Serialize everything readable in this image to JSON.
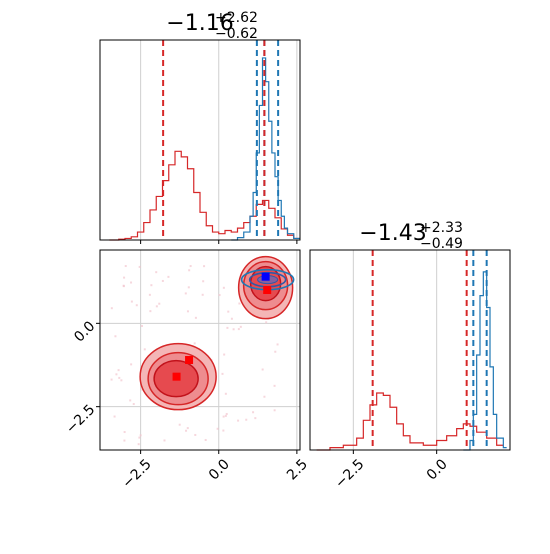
{
  "chart_data": {
    "type": "corner",
    "colors": {
      "red": "#d62728",
      "blue": "#1f77b4",
      "contour_fill": "#e8676b",
      "contour_light": "#f4b6b6",
      "contour_dark": "#c2121b",
      "grid": "#cfcfcf"
    },
    "titles": [
      {
        "main": "−1.16",
        "sup": "+2.62",
        "sub": "−0.62"
      },
      {
        "main": "−1.43",
        "sup": "+2.33",
        "sub": "−0.49"
      }
    ],
    "x_axis": {
      "range": [
        -3.8,
        2.6
      ],
      "ticks": [
        -2.5,
        0.0,
        2.5
      ],
      "tick_labels": [
        "−2.5",
        "0.0",
        "2.5"
      ]
    },
    "y2_axis": {
      "range": [
        -3.8,
        2.2
      ],
      "ticks": [
        0.0,
        -2.5
      ],
      "tick_labels": [
        "0.0",
        "−2.5"
      ]
    },
    "x2_axis": {
      "range": [
        -3.8,
        2.2
      ],
      "ticks": [
        -2.5,
        0.0
      ],
      "tick_labels": [
        "−2.5",
        "0.0"
      ]
    },
    "hist1": {
      "quantiles_red": [
        -1.78,
        1.46
      ],
      "quantiles_blue": [
        1.22,
        1.46,
        1.9
      ],
      "red_counts": [
        [
          -3.5,
          0
        ],
        [
          -3.2,
          1
        ],
        [
          -3.0,
          2
        ],
        [
          -2.8,
          4
        ],
        [
          -2.6,
          10
        ],
        [
          -2.4,
          22
        ],
        [
          -2.2,
          38
        ],
        [
          -2.0,
          55
        ],
        [
          -1.8,
          75
        ],
        [
          -1.6,
          95
        ],
        [
          -1.4,
          112
        ],
        [
          -1.2,
          105
        ],
        [
          -1.0,
          90
        ],
        [
          -0.8,
          60
        ],
        [
          -0.6,
          35
        ],
        [
          -0.4,
          18
        ],
        [
          -0.2,
          10
        ],
        [
          0.0,
          8
        ],
        [
          0.2,
          12
        ],
        [
          0.4,
          10
        ],
        [
          0.6,
          15
        ],
        [
          0.8,
          22
        ],
        [
          1.0,
          30
        ],
        [
          1.2,
          45
        ],
        [
          1.4,
          50
        ],
        [
          1.6,
          40
        ],
        [
          1.8,
          28
        ],
        [
          2.0,
          14
        ],
        [
          2.2,
          6
        ],
        [
          2.4,
          2
        ],
        [
          2.6,
          0
        ]
      ],
      "blue_counts": [
        [
          0.4,
          0
        ],
        [
          0.6,
          3
        ],
        [
          0.8,
          10
        ],
        [
          1.0,
          30
        ],
        [
          1.1,
          60
        ],
        [
          1.2,
          110
        ],
        [
          1.3,
          170
        ],
        [
          1.4,
          230
        ],
        [
          1.5,
          200
        ],
        [
          1.6,
          150
        ],
        [
          1.7,
          110
        ],
        [
          1.8,
          80
        ],
        [
          1.9,
          50
        ],
        [
          2.0,
          30
        ],
        [
          2.1,
          15
        ],
        [
          2.2,
          8
        ],
        [
          2.4,
          2
        ],
        [
          2.6,
          0
        ]
      ]
    },
    "hist2": {
      "quantiles_red": [
        -1.92,
        0.9
      ],
      "quantiles_blue": [
        1.1,
        1.5
      ],
      "red_counts": [
        [
          -3.6,
          0
        ],
        [
          -3.2,
          2
        ],
        [
          -2.8,
          4
        ],
        [
          -2.4,
          10
        ],
        [
          -2.2,
          25
        ],
        [
          -2.0,
          38
        ],
        [
          -1.8,
          48
        ],
        [
          -1.6,
          46
        ],
        [
          -1.4,
          36
        ],
        [
          -1.2,
          22
        ],
        [
          -1.0,
          12
        ],
        [
          -0.8,
          6
        ],
        [
          -0.4,
          4
        ],
        [
          0.0,
          8
        ],
        [
          0.3,
          12
        ],
        [
          0.6,
          18
        ],
        [
          0.8,
          22
        ],
        [
          1.0,
          20
        ],
        [
          1.2,
          15
        ],
        [
          1.5,
          10
        ],
        [
          1.8,
          4
        ],
        [
          2.0,
          1
        ]
      ],
      "blue_counts": [
        [
          0.8,
          0
        ],
        [
          1.0,
          8
        ],
        [
          1.1,
          30
        ],
        [
          1.2,
          80
        ],
        [
          1.3,
          130
        ],
        [
          1.4,
          150
        ],
        [
          1.5,
          120
        ],
        [
          1.6,
          70
        ],
        [
          1.7,
          30
        ],
        [
          1.8,
          10
        ],
        [
          2.0,
          2
        ],
        [
          2.1,
          0
        ]
      ]
    },
    "scatter": {
      "markers_red": [
        [
          -1.35,
          -1.6
        ],
        [
          -0.95,
          -1.1
        ],
        [
          1.55,
          1.0
        ]
      ],
      "markers_blue": [
        [
          1.5,
          1.4
        ]
      ],
      "contour_centers": [
        [
          -1.3,
          -1.6
        ],
        [
          1.5,
          1.25
        ]
      ]
    }
  }
}
